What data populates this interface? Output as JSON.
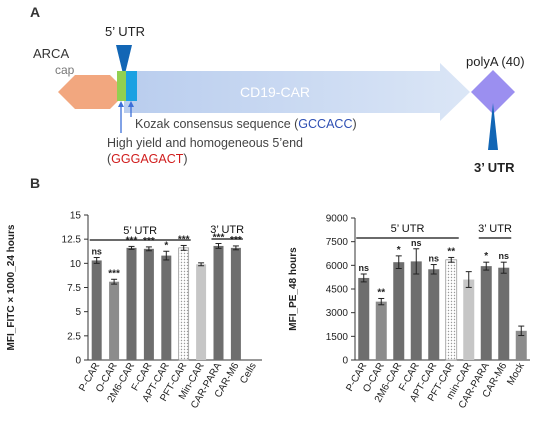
{
  "panel_a": {
    "label": "A",
    "cap_title": "ARCA",
    "cap_sub": "cap",
    "utr5_label": "5’ UTR",
    "cds_label": "CD19-CAR",
    "polya_label": "polyA (40)",
    "utr3_label": "3’ UTR",
    "kozak_text": "Kozak consensus sequence (",
    "kozak_seq": "GCCACC",
    "kozak_close": ")",
    "yield_line1": "High yield and homogeneous 5’end",
    "yield_open": "(",
    "yield_seq": "GGGAGACT",
    "yield_close": ")",
    "colors": {
      "cap": "#f2a77f",
      "utr5_green": "#92d050",
      "utr5_blue": "#1ba1e2",
      "cds_start": "#b9cdee",
      "cds_end": "#dbe6f6",
      "polya": "#9b8ff0",
      "triangle": "#1266b5",
      "arrow": "#3d6fd8",
      "kozak_seq": "#2e4fb3",
      "yield_seq": "#d01c1c"
    }
  },
  "panel_b": {
    "label": "B"
  },
  "chart_data": [
    {
      "type": "bar",
      "ylabel": "MFI_FITC × 1000_24 hours",
      "ylim": [
        0,
        15
      ],
      "yticks": [
        "0",
        "2.5",
        "5",
        "7.5",
        "10",
        "12.5",
        "15"
      ],
      "categories": [
        "P-CAR",
        "O-CAR",
        "2M6-CAR",
        "F-CAR",
        "APT-CAR",
        "PFT-CAR",
        "Min-CAR",
        "CAR-PARA",
        "CAR-M6",
        "Cells"
      ],
      "values": [
        10.3,
        8.1,
        11.6,
        11.5,
        10.8,
        11.6,
        9.9,
        11.8,
        11.6,
        0.0
      ],
      "errors": [
        0.3,
        0.25,
        0.15,
        0.2,
        0.45,
        0.25,
        0.15,
        0.25,
        0.2,
        0.0
      ],
      "significance": [
        "ns",
        "***",
        "***",
        "***",
        "*",
        "***",
        "",
        "***",
        "***",
        ""
      ],
      "fills": [
        "#6e6e6e",
        "#8c8c8c",
        "#6e6e6e",
        "#6e6e6e",
        "#6e6e6e",
        "dotted",
        "#c6c6c6",
        "#6e6e6e",
        "#6e6e6e",
        "none"
      ],
      "brackets": [
        {
          "label": "5’ UTR",
          "from": 0,
          "to": 5
        },
        {
          "label": "3’ UTR",
          "from": 7,
          "to": 8
        }
      ]
    },
    {
      "type": "bar",
      "ylabel": "MFI_PE_48 hours",
      "ylim": [
        0,
        9000
      ],
      "yticks": [
        "0",
        "1500",
        "3000",
        "4500",
        "6000",
        "7500",
        "9000"
      ],
      "categories": [
        "P-CAR",
        "O-CAR",
        "2M6-CAR",
        "F-CAR",
        "APT-CAR",
        "PFT-CAR",
        "min-CAR",
        "CAR-PARA",
        "CAR-M6",
        "Mock"
      ],
      "values": [
        5200,
        3700,
        6200,
        6250,
        5750,
        6350,
        5100,
        5950,
        5850,
        1850
      ],
      "errors": [
        250,
        200,
        400,
        800,
        300,
        150,
        500,
        250,
        350,
        300
      ],
      "significance": [
        "ns",
        "**",
        "*",
        "ns",
        "ns",
        "**",
        "",
        "*",
        "ns",
        ""
      ],
      "fills": [
        "#6e6e6e",
        "#8c8c8c",
        "#6e6e6e",
        "#6e6e6e",
        "#6e6e6e",
        "dotted",
        "#c6c6c6",
        "#6e6e6e",
        "#6e6e6e",
        "#8c8c8c"
      ],
      "brackets": [
        {
          "label": "5’ UTR",
          "from": 0,
          "to": 5
        },
        {
          "label": "3’ UTR",
          "from": 7,
          "to": 8
        }
      ]
    }
  ]
}
